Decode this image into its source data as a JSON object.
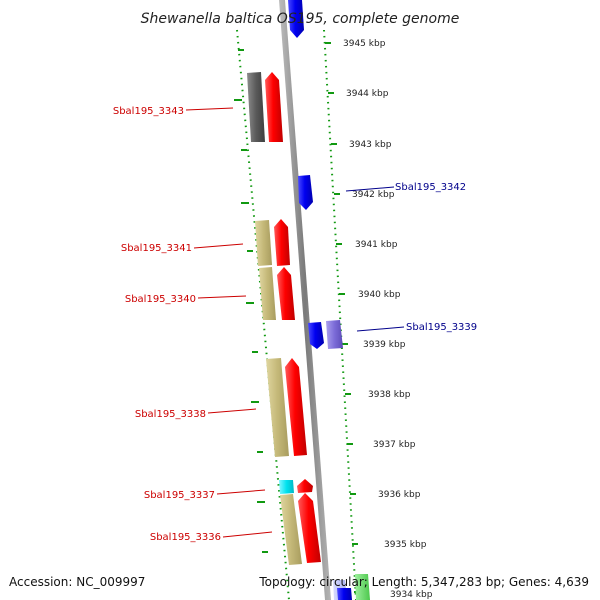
{
  "title": "Shewanella baltica OS195, complete genome",
  "accession_label": "Accession: NC_009997",
  "info_label": "Topology: circular; Length: 5,347,283 bp; Genes: 4,639",
  "colors": {
    "forward_gene": "#ff0000",
    "reverse_gene": "#0000ff",
    "tan": "#c8bd7f",
    "gray_block": "#666666",
    "cyan_block": "#00e6f0",
    "violet_block": "#8877dd",
    "tick_green": "#119911",
    "backbone": "#8a8a8a"
  },
  "scale_labels": [
    {
      "text": "3945 kbp",
      "kbp": 3945
    },
    {
      "text": "3944 kbp",
      "kbp": 3944
    },
    {
      "text": "3943 kbp",
      "kbp": 3943
    },
    {
      "text": "3942 kbp",
      "kbp": 3942
    },
    {
      "text": "3941 kbp",
      "kbp": 3941
    },
    {
      "text": "3940 kbp",
      "kbp": 3940
    },
    {
      "text": "3939 kbp",
      "kbp": 3939
    },
    {
      "text": "3938 kbp",
      "kbp": 3938
    },
    {
      "text": "3937 kbp",
      "kbp": 3937
    },
    {
      "text": "3936 kbp",
      "kbp": 3936
    },
    {
      "text": "3935 kbp",
      "kbp": 3935
    },
    {
      "text": "3934 kbp",
      "kbp": 3934
    }
  ],
  "gene_labels": [
    {
      "text": "Sbal195_3343",
      "strand": "forward"
    },
    {
      "text": "Sbal195_3342",
      "strand": "reverse"
    },
    {
      "text": "Sbal195_3341",
      "strand": "forward"
    },
    {
      "text": "Sbal195_3340",
      "strand": "forward"
    },
    {
      "text": "Sbal195_3339",
      "strand": "reverse"
    },
    {
      "text": "Sbal195_3338",
      "strand": "forward"
    },
    {
      "text": "Sbal195_3337",
      "strand": "forward"
    },
    {
      "text": "Sbal195_3336",
      "strand": "forward"
    }
  ]
}
